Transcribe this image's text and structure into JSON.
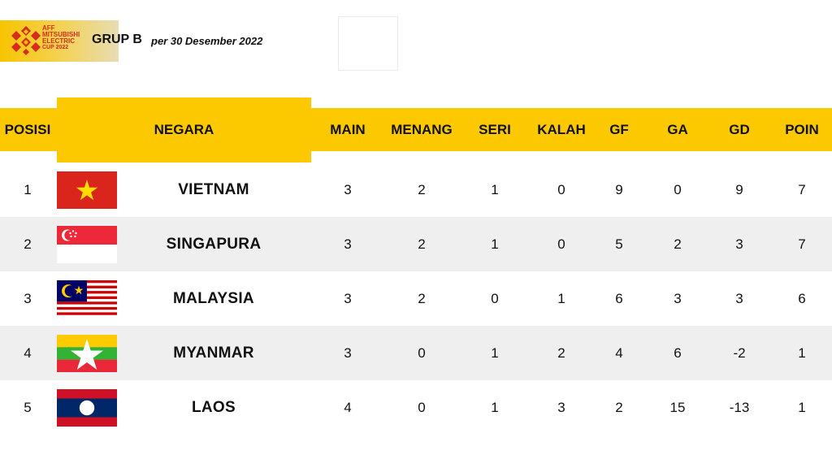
{
  "header": {
    "logo_lines": [
      "AFF",
      "MITSUBISHI",
      "ELECTRIC",
      "CUP 2022"
    ],
    "group": "GRUP B",
    "date": "per  30 Desember 2022"
  },
  "columns": {
    "posisi": "POSISI",
    "negara": "NEGARA",
    "main": "MAIN",
    "menang": "MENANG",
    "seri": "SERI",
    "kalah": "KALAH",
    "gf": "GF",
    "ga": "GA",
    "gd": "GD",
    "poin": "POIN"
  },
  "colors": {
    "header_yellow": "#fcc800",
    "row_alt": "#efefef"
  },
  "rows": [
    {
      "posisi": "1",
      "negara": "VIETNAM",
      "flag": "vietnam-flag-icon",
      "main": "3",
      "menang": "2",
      "seri": "1",
      "kalah": "0",
      "gf": "9",
      "ga": "0",
      "gd": "9",
      "poin": "7"
    },
    {
      "posisi": "2",
      "negara": "SINGAPURA",
      "flag": "singapore-flag-icon",
      "main": "3",
      "menang": "2",
      "seri": "1",
      "kalah": "0",
      "gf": "5",
      "ga": "2",
      "gd": "3",
      "poin": "7"
    },
    {
      "posisi": "3",
      "negara": "MALAYSIA",
      "flag": "malaysia-flag-icon",
      "main": "3",
      "menang": "2",
      "seri": "0",
      "kalah": "1",
      "gf": "6",
      "ga": "3",
      "gd": "3",
      "poin": "6"
    },
    {
      "posisi": "4",
      "negara": "MYANMAR",
      "flag": "myanmar-flag-icon",
      "main": "3",
      "menang": "0",
      "seri": "1",
      "kalah": "2",
      "gf": "4",
      "ga": "6",
      "gd": "-2",
      "poin": "1"
    },
    {
      "posisi": "5",
      "negara": "LAOS",
      "flag": "laos-flag-icon",
      "main": "4",
      "menang": "0",
      "seri": "1",
      "kalah": "3",
      "gf": "2",
      "ga": "15",
      "gd": "-13",
      "poin": "1"
    }
  ]
}
